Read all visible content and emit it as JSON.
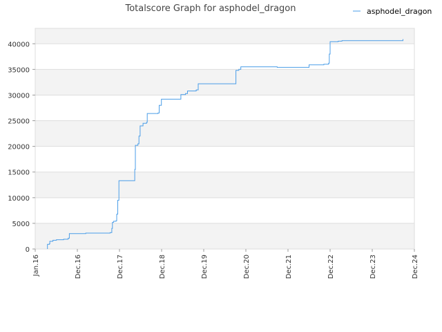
{
  "chart_data": {
    "type": "line",
    "title": "Totalscore Graph for asphodel_dragon",
    "xlabel": "",
    "ylabel": "",
    "x_ticks": [
      "Jan.16",
      "Dec.16",
      "Dec.17",
      "Dec.18",
      "Dec.19",
      "Dec.20",
      "Dec.21",
      "Dec.22",
      "Dec.23",
      "Dec.24"
    ],
    "y_ticks": [
      0,
      5000,
      10000,
      15000,
      20000,
      25000,
      30000,
      35000,
      40000
    ],
    "ylim": [
      0,
      43000
    ],
    "legend_position": "top-right",
    "grid": true,
    "series": [
      {
        "name": "asphodel_dragon",
        "color": "#4a9de8",
        "points": [
          [
            "2016-04-15",
            0
          ],
          [
            "2016-04-15",
            900
          ],
          [
            "2016-05-01",
            1000
          ],
          [
            "2016-05-05",
            1500
          ],
          [
            "2016-06-01",
            1700
          ],
          [
            "2016-07-01",
            1800
          ],
          [
            "2016-09-01",
            1900
          ],
          [
            "2016-10-10",
            2100
          ],
          [
            "2016-10-20",
            3000
          ],
          [
            "2016-12-01",
            3000
          ],
          [
            "2017-03-01",
            3000
          ],
          [
            "2017-03-10",
            3100
          ],
          [
            "2017-10-05",
            3200
          ],
          [
            "2017-10-20",
            4000
          ],
          [
            "2017-10-25",
            5200
          ],
          [
            "2017-11-05",
            5400
          ],
          [
            "2017-11-25",
            5500
          ],
          [
            "2017-12-01",
            6800
          ],
          [
            "2017-12-10",
            9500
          ],
          [
            "2017-12-20",
            13300
          ],
          [
            "2018-05-01",
            13300
          ],
          [
            "2018-05-05",
            15500
          ],
          [
            "2018-05-10",
            20200
          ],
          [
            "2018-06-01",
            20500
          ],
          [
            "2018-06-10",
            22000
          ],
          [
            "2018-06-20",
            24000
          ],
          [
            "2018-07-15",
            24500
          ],
          [
            "2018-08-15",
            24700
          ],
          [
            "2018-08-20",
            26400
          ],
          [
            "2018-11-20",
            26500
          ],
          [
            "2018-12-01",
            28000
          ],
          [
            "2018-12-20",
            29200
          ],
          [
            "2019-06-01",
            29200
          ],
          [
            "2019-06-05",
            30100
          ],
          [
            "2019-07-15",
            30300
          ],
          [
            "2019-08-01",
            30800
          ],
          [
            "2019-10-15",
            31000
          ],
          [
            "2019-11-01",
            32200
          ],
          [
            "2020-09-15",
            32200
          ],
          [
            "2020-09-20",
            34800
          ],
          [
            "2020-10-15",
            35000
          ],
          [
            "2020-11-01",
            35500
          ],
          [
            "2021-09-01",
            35500
          ],
          [
            "2021-09-10",
            35400
          ],
          [
            "2022-06-01",
            35400
          ],
          [
            "2022-06-10",
            35900
          ],
          [
            "2022-10-15",
            36000
          ],
          [
            "2022-11-25",
            36200
          ],
          [
            "2022-12-01",
            38000
          ],
          [
            "2022-12-08",
            40400
          ],
          [
            "2023-02-15",
            40500
          ],
          [
            "2023-03-20",
            40600
          ],
          [
            "2024-08-15",
            40600
          ],
          [
            "2024-08-25",
            40900
          ]
        ]
      }
    ]
  }
}
